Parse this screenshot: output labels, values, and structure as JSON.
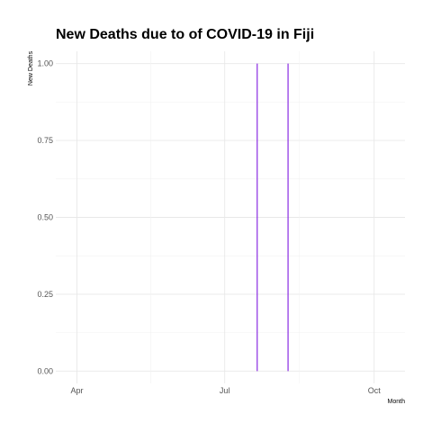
{
  "chart_data": {
    "type": "bar",
    "title": "New Deaths due to of COVID-19 in Fiji",
    "xlabel": "Month",
    "ylabel": "New Deaths",
    "x_tick_labels": [
      "Apr",
      "Jul",
      "Oct"
    ],
    "x_tick_dates": [
      "2020-04-01",
      "2020-07-01",
      "2020-10-01"
    ],
    "xlim": [
      "2020-03-19",
      "2020-10-20"
    ],
    "y_ticks": [
      0.0,
      0.25,
      0.5,
      0.75,
      1.0
    ],
    "y_tick_labels": [
      "0.00",
      "0.25",
      "0.50",
      "0.75",
      "1.00"
    ],
    "ylim": [
      -0.04,
      1.04
    ],
    "grid": true,
    "bar_color": "#8a2be2",
    "series": [
      {
        "x": [
          "2020-07-21",
          "2020-08-09"
        ],
        "values": [
          1,
          1
        ]
      }
    ]
  }
}
